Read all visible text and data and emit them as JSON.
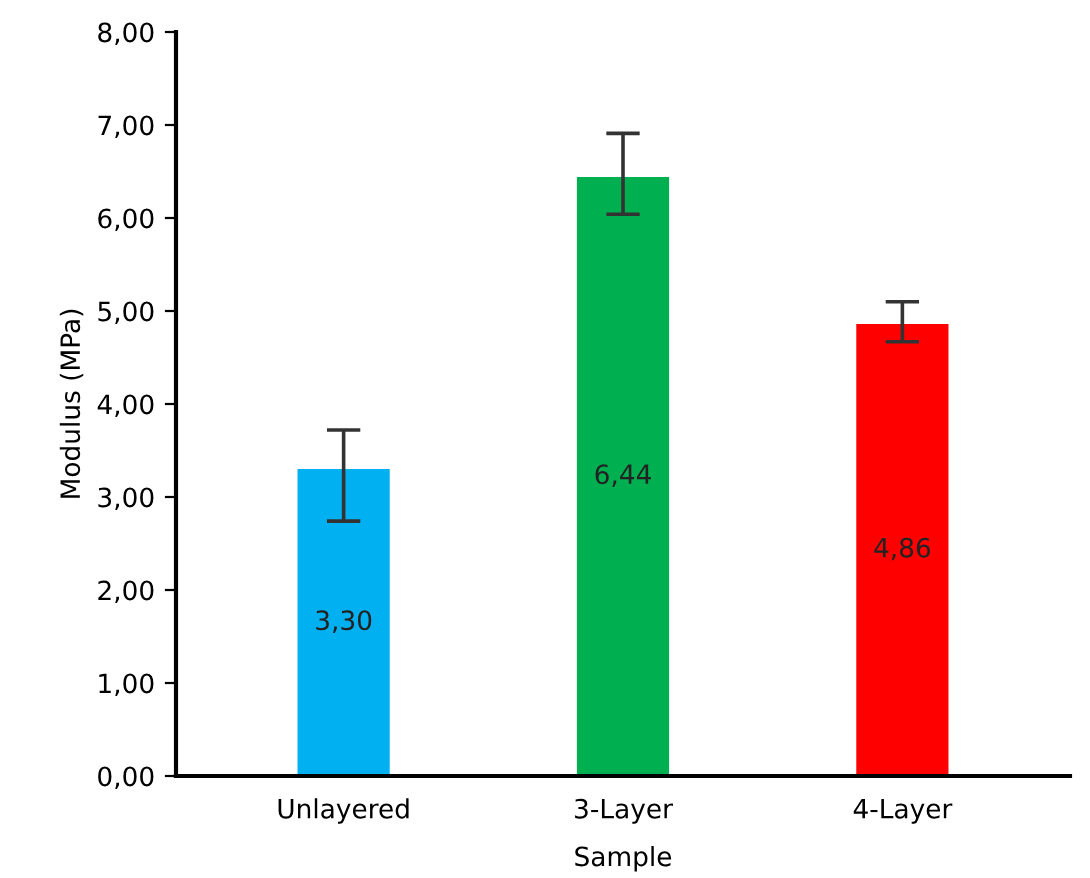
{
  "chart_data": {
    "type": "bar",
    "xlabel": "Sample",
    "ylabel": "Modulus (MPa)",
    "categories": [
      "Unlayered",
      "3-Layer",
      "4-Layer"
    ],
    "values": [
      3.3,
      6.44,
      4.86
    ],
    "colors": [
      "#00b0f0",
      "#00b050",
      "#ff0000"
    ],
    "errors": [
      [
        2.74,
        3.72
      ],
      [
        6.04,
        6.91
      ],
      [
        4.67,
        5.1
      ]
    ],
    "value_labels": [
      "3,30",
      "6,44",
      "4,86"
    ],
    "ylim": [
      0,
      8
    ],
    "yticks": [
      {
        "value": 0,
        "label": "0,00"
      },
      {
        "value": 1,
        "label": "1,00"
      },
      {
        "value": 2,
        "label": "2,00"
      },
      {
        "value": 3,
        "label": "3,00"
      },
      {
        "value": 4,
        "label": "4,00"
      },
      {
        "value": 5,
        "label": "5,00"
      },
      {
        "value": 6,
        "label": "6,00"
      },
      {
        "value": 7,
        "label": "7,00"
      },
      {
        "value": 8,
        "label": "8,00"
      }
    ],
    "grid": false,
    "legend": false
  }
}
